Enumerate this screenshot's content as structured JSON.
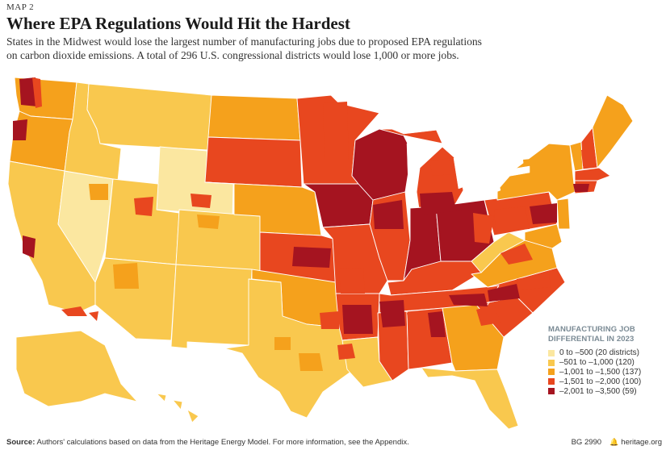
{
  "header": {
    "map_label": "MAP 2",
    "title": "Where EPA Regulations Would Hit the Hardest",
    "subtitle": "States in the Midwest would lose the largest number of manufacturing jobs due to proposed EPA regulations on carbon dioxide emissions. A total of 296 U.S. congressional districts would lose 1,000 or more jobs."
  },
  "legend": {
    "title_line1": "MANUFACTURING JOB",
    "title_line2": "DIFFERENTIAL IN 2023",
    "items": [
      {
        "label": "0 to –500 (20 districts)",
        "color": "#fbe7a0"
      },
      {
        "label": "–501 to –1,000 (120)",
        "color": "#f9c84e"
      },
      {
        "label": "–1,001 to –1,500 (137)",
        "color": "#f5a11c"
      },
      {
        "label": "–1,501 to –2,000 (100)",
        "color": "#e8471f"
      },
      {
        "label": "–2,001 to –3,500 (59)",
        "color": "#a51420"
      }
    ]
  },
  "footer": {
    "source_key": "Source:",
    "source_text": " Authors' calculations based on data from the Heritage Energy Model. For more information, see the Appendix.",
    "report_id": "BG 2990",
    "site": "heritage.org"
  },
  "colors": {
    "c1": "#fbe7a0",
    "c2": "#f9c84e",
    "c3": "#f5a11c",
    "c4": "#e8471f",
    "c5": "#a51420"
  },
  "map_data": {
    "type": "choropleth",
    "unit": "congressional district",
    "states": [
      {
        "state": "WA",
        "dominant_class": 3
      },
      {
        "state": "OR",
        "dominant_class": 3
      },
      {
        "state": "CA",
        "dominant_class": 2
      },
      {
        "state": "NV",
        "dominant_class": 1
      },
      {
        "state": "ID",
        "dominant_class": 2
      },
      {
        "state": "MT",
        "dominant_class": 2
      },
      {
        "state": "WY",
        "dominant_class": 1
      },
      {
        "state": "UT",
        "dominant_class": 2
      },
      {
        "state": "AZ",
        "dominant_class": 2
      },
      {
        "state": "CO",
        "dominant_class": 2
      },
      {
        "state": "NM",
        "dominant_class": 2
      },
      {
        "state": "ND",
        "dominant_class": 3
      },
      {
        "state": "SD",
        "dominant_class": 4
      },
      {
        "state": "NE",
        "dominant_class": 3
      },
      {
        "state": "KS",
        "dominant_class": 4
      },
      {
        "state": "OK",
        "dominant_class": 3
      },
      {
        "state": "TX",
        "dominant_class": 2
      },
      {
        "state": "MN",
        "dominant_class": 4
      },
      {
        "state": "IA",
        "dominant_class": 5
      },
      {
        "state": "MO",
        "dominant_class": 4
      },
      {
        "state": "AR",
        "dominant_class": 4
      },
      {
        "state": "LA",
        "dominant_class": 2
      },
      {
        "state": "WI",
        "dominant_class": 5
      },
      {
        "state": "IL",
        "dominant_class": 4
      },
      {
        "state": "MI",
        "dominant_class": 4
      },
      {
        "state": "IN",
        "dominant_class": 5
      },
      {
        "state": "OH",
        "dominant_class": 5
      },
      {
        "state": "KY",
        "dominant_class": 4
      },
      {
        "state": "TN",
        "dominant_class": 4
      },
      {
        "state": "MS",
        "dominant_class": 4
      },
      {
        "state": "AL",
        "dominant_class": 4
      },
      {
        "state": "GA",
        "dominant_class": 3
      },
      {
        "state": "FL",
        "dominant_class": 2
      },
      {
        "state": "SC",
        "dominant_class": 4
      },
      {
        "state": "NC",
        "dominant_class": 4
      },
      {
        "state": "VA",
        "dominant_class": 3
      },
      {
        "state": "WV",
        "dominant_class": 2
      },
      {
        "state": "PA",
        "dominant_class": 4
      },
      {
        "state": "NY",
        "dominant_class": 3
      },
      {
        "state": "VT",
        "dominant_class": 3
      },
      {
        "state": "NH",
        "dominant_class": 4
      },
      {
        "state": "ME",
        "dominant_class": 3
      },
      {
        "state": "MA",
        "dominant_class": 4
      },
      {
        "state": "CT",
        "dominant_class": 4
      },
      {
        "state": "NJ",
        "dominant_class": 3
      },
      {
        "state": "MD",
        "dominant_class": 3
      },
      {
        "state": "AK",
        "dominant_class": 2
      },
      {
        "state": "HI",
        "dominant_class": 2
      }
    ]
  }
}
